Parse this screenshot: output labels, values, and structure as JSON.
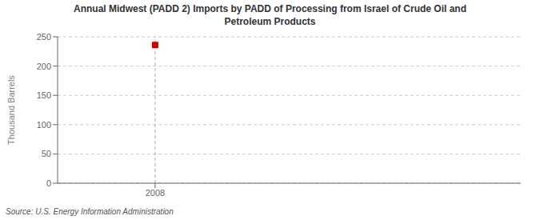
{
  "chart_data": {
    "type": "scatter",
    "title": "Annual Midwest (PADD 2) Imports by PADD of Processing from Israel of Crude Oil and\nPetroleum Products",
    "ylabel": "Thousand Barrels",
    "annotations": [
      "Source: U.S. Energy Information Administration"
    ],
    "x": [
      2008
    ],
    "values": [
      236
    ],
    "color": "#cc0000",
    "marker": "square",
    "xlim": [
      2007.6,
      2009.5
    ],
    "xticks": [
      2008
    ],
    "ylim": [
      0,
      250
    ],
    "yticks": [
      0,
      50,
      100,
      150,
      200,
      250
    ],
    "grid": "y"
  }
}
